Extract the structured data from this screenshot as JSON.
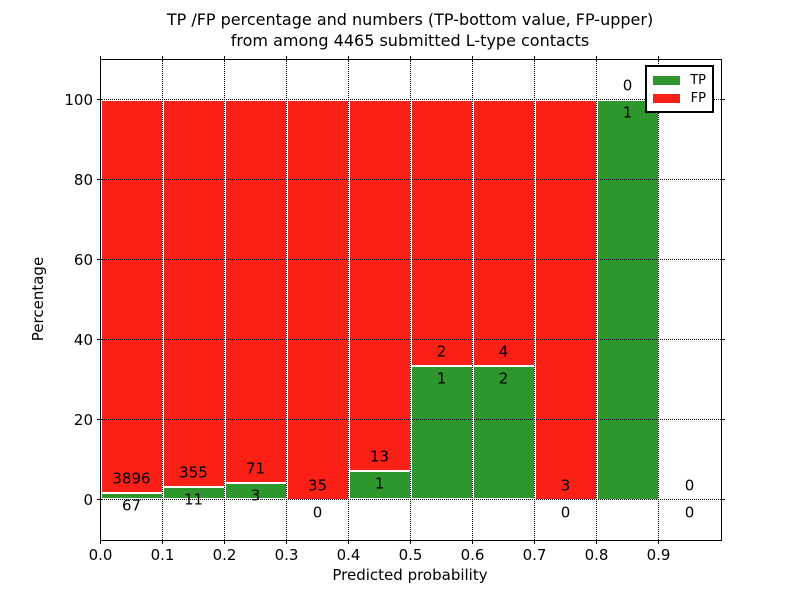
{
  "title": {
    "line1": "TP /FP percentage and numbers (TP-bottom value, FP-upper)",
    "line2": "from among 4465 submitted L-type contacts"
  },
  "axes": {
    "xlabel": "Predicted probability",
    "ylabel": "Percentage",
    "xticks": [
      "0.0",
      "0.1",
      "0.2",
      "0.3",
      "0.4",
      "0.5",
      "0.6",
      "0.7",
      "0.8",
      "0.9"
    ],
    "yticks": [
      "0",
      "20",
      "40",
      "60",
      "80",
      "100"
    ],
    "xlim": [
      0,
      1.0
    ],
    "ylim": [
      -10,
      110
    ],
    "grid_style": "dotted"
  },
  "legend": {
    "position": "upper right",
    "items": [
      {
        "label": "TP",
        "color": "#2d962d"
      },
      {
        "label": "FP",
        "color": "#fb2015"
      }
    ]
  },
  "chart_data": {
    "type": "bar",
    "stacked": true,
    "normalized": "percent-of-each-bin",
    "title": "TP /FP percentage and numbers (TP-bottom value, FP-upper) from among 4465 submitted L-type contacts",
    "xlabel": "Predicted probability",
    "ylabel": "Percentage",
    "bin_width": 0.1,
    "categories": [
      "0.0-0.1",
      "0.1-0.2",
      "0.2-0.3",
      "0.3-0.4",
      "0.4-0.5",
      "0.5-0.6",
      "0.6-0.7",
      "0.7-0.8",
      "0.8-0.9",
      "0.9-1.0"
    ],
    "series": [
      {
        "name": "TP",
        "color": "#2d962d",
        "counts": [
          67,
          11,
          3,
          0,
          1,
          1,
          2,
          0,
          1,
          0
        ]
      },
      {
        "name": "FP",
        "color": "#fb2015",
        "counts": [
          3896,
          355,
          71,
          35,
          13,
          2,
          4,
          3,
          0,
          0
        ]
      }
    ],
    "tp_percent_of_bin": [
      1.69,
      3.01,
      4.05,
      0,
      7.14,
      33.33,
      33.33,
      0,
      100,
      null
    ],
    "total_contacts": 4465,
    "xlim": [
      0,
      1.0
    ],
    "ylim": [
      -10,
      110
    ],
    "legend_position": "upper right",
    "grid": true
  },
  "colors": {
    "tp": "#2d962d",
    "fp": "#fb2015",
    "background": "#ffffff",
    "text": "#000000"
  }
}
